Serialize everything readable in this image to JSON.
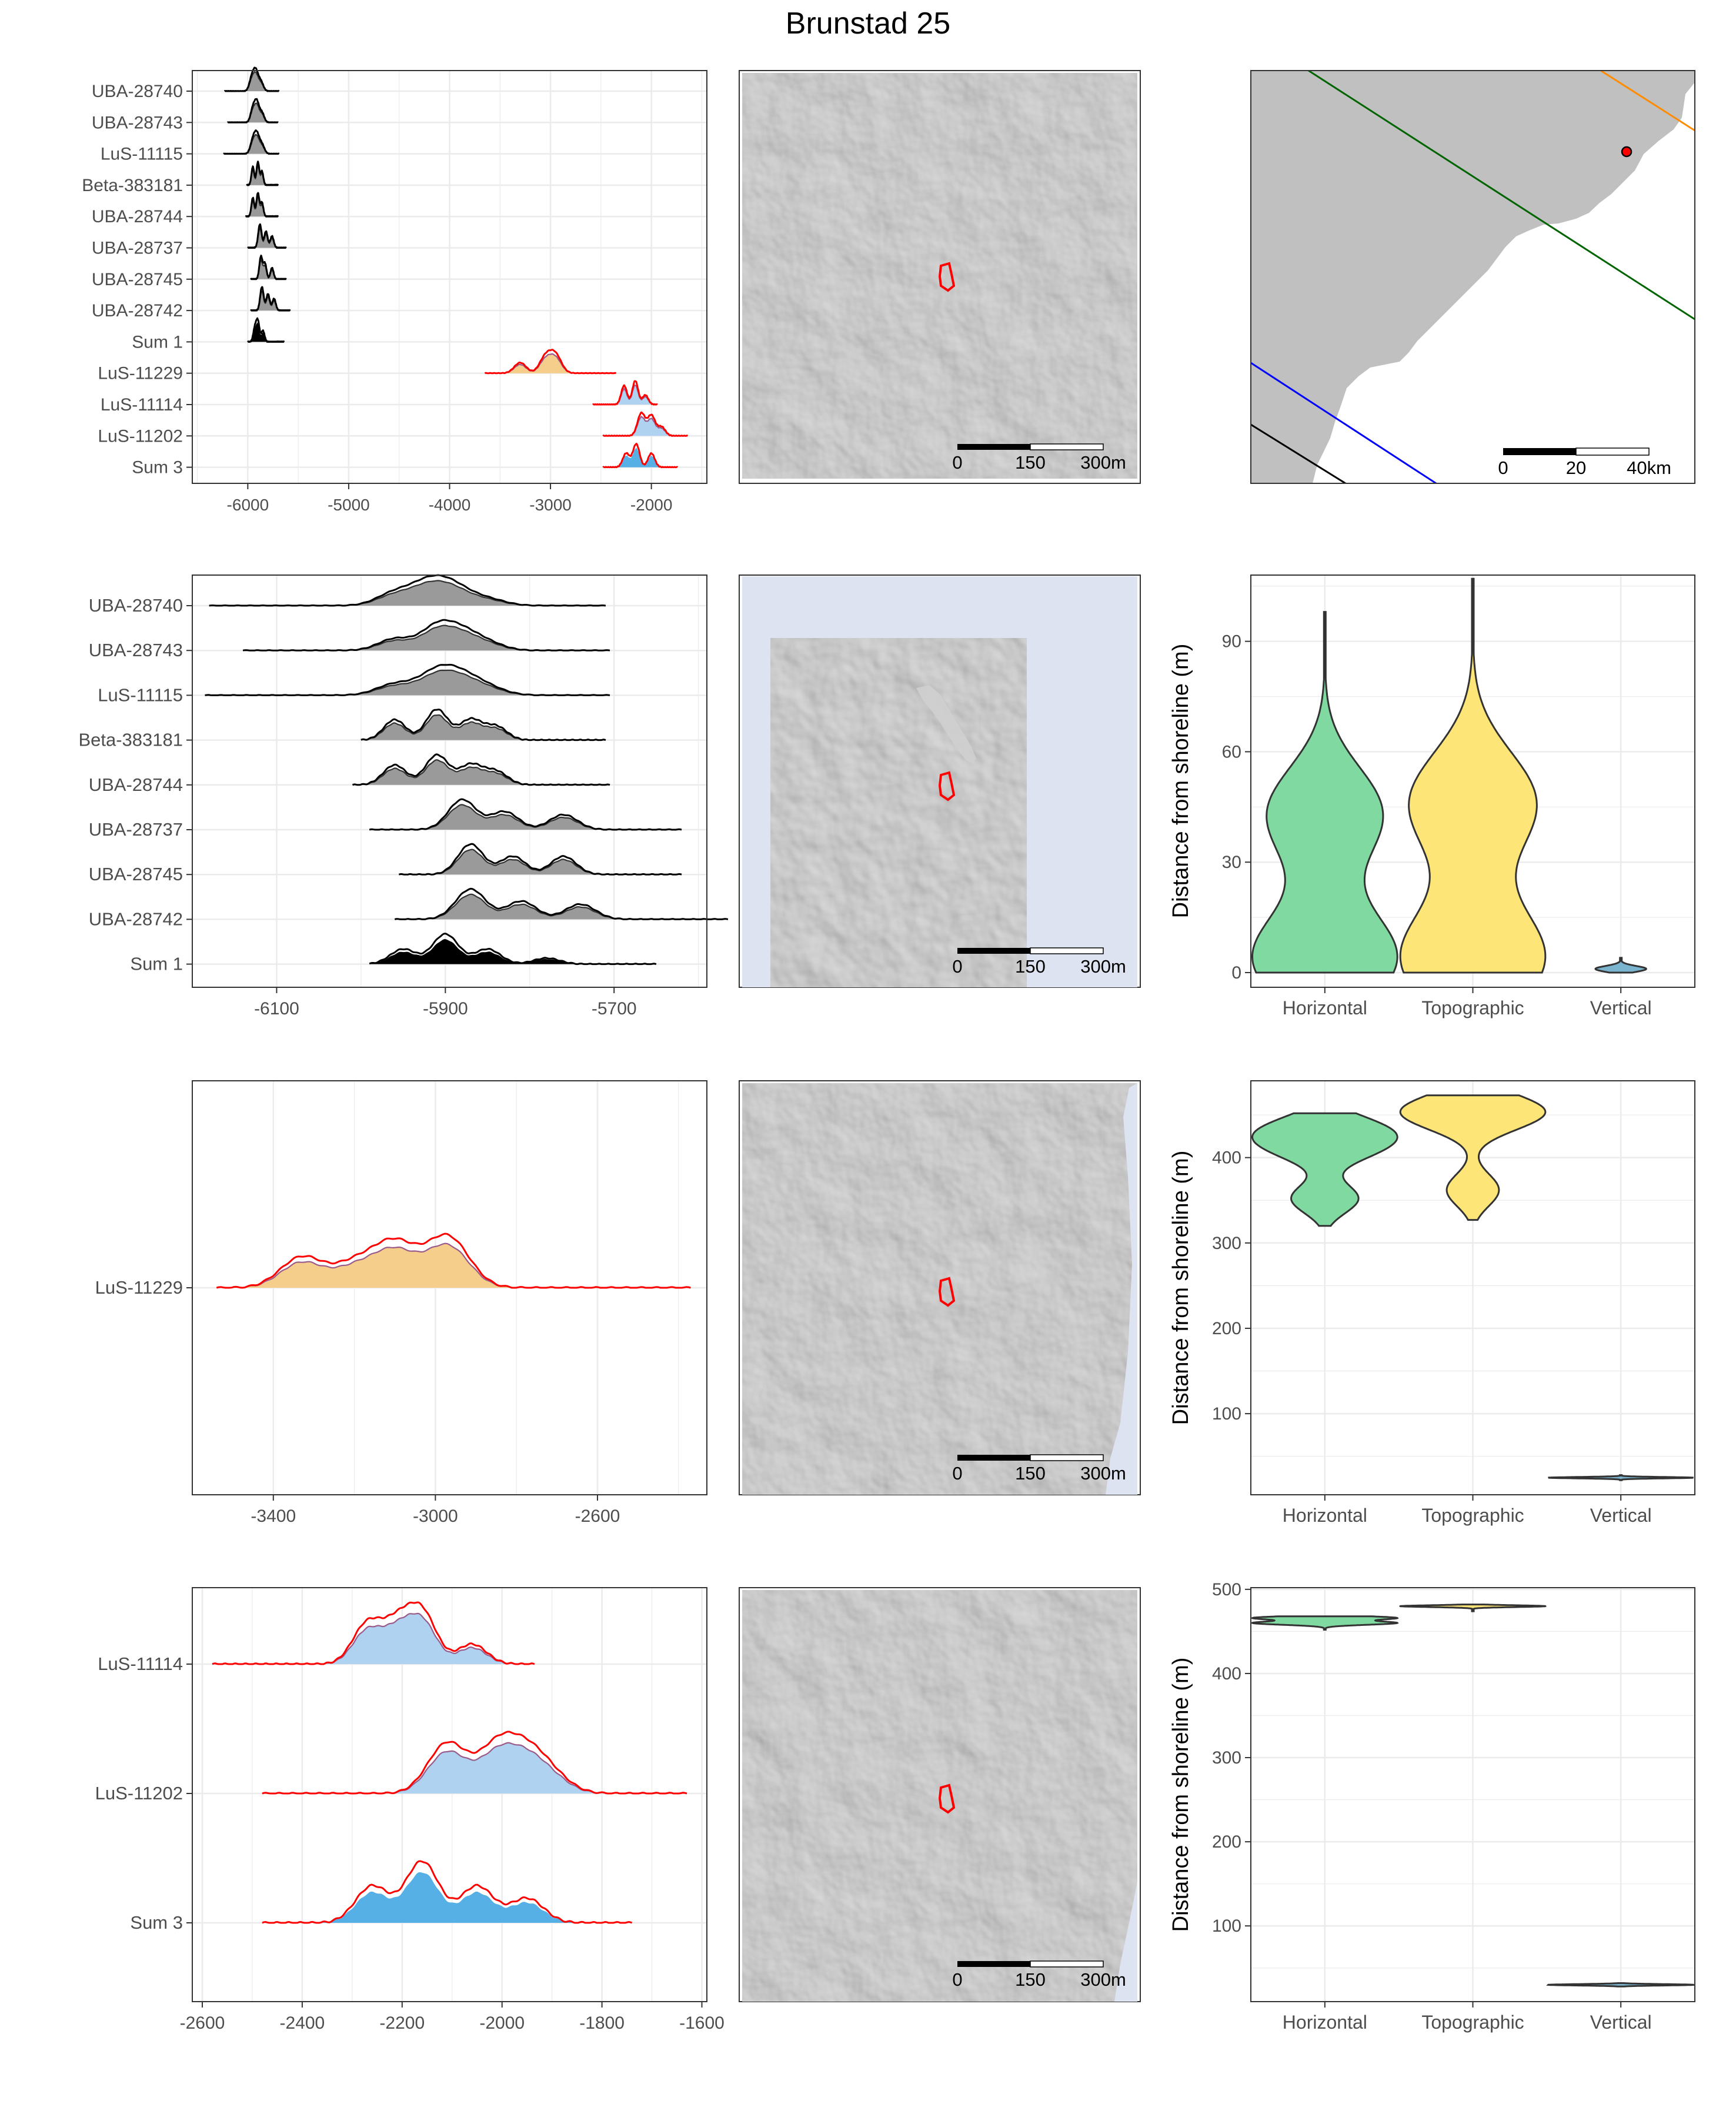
{
  "title": "Brunstad 25",
  "colors": {
    "panel_border": "#333333",
    "grid": "#ebebeb",
    "black": "#000000",
    "red": "#ff0000",
    "gray_fill": "#9a9a9a",
    "orange_fill": "#f5ce8b",
    "light_blue_fill": "#aed2ef",
    "blue_fill": "#56b0e6",
    "horizontal": "#7fd9a0",
    "topographic": "#fde677",
    "vertical": "#7ab4cf",
    "map_gray": "#c0c0c0",
    "sea": "#dde3f1",
    "hillshade": "#8a8a8a",
    "line_green": "#006400",
    "line_blue": "#0000ff",
    "line_orange": "#ff8c00"
  },
  "scalebar_local": [
    "0",
    "150",
    "300m"
  ],
  "scalebar_regional": [
    "0",
    "20",
    "40km"
  ],
  "chart_data": [
    {
      "type": "ridgeline",
      "panel": "row1-dates",
      "xlabel": "",
      "xlim": [
        -6550,
        -1450
      ],
      "xticks": [
        -6000,
        -5000,
        -4000,
        -3000,
        -2000
      ],
      "xtick_labels": [
        "-6000",
        "-5000",
        "-4000",
        "-3000",
        "-2000"
      ],
      "grid": true,
      "series": [
        {
          "name": "UBA-28740",
          "color": "black",
          "range": [
            -6230,
            -5690
          ],
          "peaks": [
            [
              -5960,
              0.7
            ],
            [
              -5920,
              1.0
            ],
            [
              -5870,
              0.5
            ]
          ]
        },
        {
          "name": "UBA-28743",
          "color": "black",
          "range": [
            -6200,
            -5700
          ],
          "peaks": [
            [
              -5950,
              0.7
            ],
            [
              -5910,
              1.0
            ],
            [
              -5860,
              0.5
            ]
          ]
        },
        {
          "name": "LuS-11115",
          "color": "black",
          "range": [
            -6240,
            -5690
          ],
          "peaks": [
            [
              -5950,
              0.7
            ],
            [
              -5910,
              1.0
            ],
            [
              -5860,
              0.5
            ]
          ]
        },
        {
          "name": "Beta-383181",
          "color": "black",
          "range": [
            -6010,
            -5700
          ],
          "peaks": [
            [
              -5950,
              0.8
            ],
            [
              -5900,
              1.0
            ],
            [
              -5860,
              0.6
            ]
          ]
        },
        {
          "name": "UBA-28744",
          "color": "black",
          "range": [
            -6020,
            -5700
          ],
          "peaks": [
            [
              -5950,
              0.8
            ],
            [
              -5900,
              1.0
            ],
            [
              -5860,
              0.6
            ]
          ]
        },
        {
          "name": "UBA-28737",
          "color": "black",
          "range": [
            -6000,
            -5620
          ],
          "peaks": [
            [
              -5880,
              1.0
            ],
            [
              -5820,
              0.7
            ],
            [
              -5760,
              0.5
            ]
          ]
        },
        {
          "name": "UBA-28745",
          "color": "black",
          "range": [
            -5970,
            -5620
          ],
          "peaks": [
            [
              -5870,
              1.0
            ],
            [
              -5830,
              0.7
            ],
            [
              -5760,
              0.5
            ]
          ]
        },
        {
          "name": "UBA-28742",
          "color": "black",
          "range": [
            -5970,
            -5580
          ],
          "peaks": [
            [
              -5860,
              1.0
            ],
            [
              -5800,
              0.7
            ],
            [
              -5740,
              0.5
            ]
          ]
        },
        {
          "name": "Sum 1",
          "color": "black",
          "range": [
            -6000,
            -5640
          ],
          "peaks": [
            [
              -5930,
              0.6
            ],
            [
              -5900,
              0.9
            ],
            [
              -5850,
              0.5
            ]
          ]
        },
        {
          "name": "LuS-11229",
          "color": "red",
          "range": [
            -3650,
            -2350
          ],
          "peaks": [
            [
              -3300,
              0.6
            ],
            [
              -3050,
              0.9
            ],
            [
              -2950,
              1.0
            ]
          ]
        },
        {
          "name": "LuS-11114",
          "color": "red",
          "range": [
            -2580,
            -1940
          ],
          "peaks": [
            [
              -2270,
              0.8
            ],
            [
              -2160,
              1.0
            ],
            [
              -2060,
              0.4
            ]
          ]
        },
        {
          "name": "LuS-11202",
          "color": "red",
          "range": [
            -2480,
            -1640
          ],
          "peaks": [
            [
              -2100,
              1.0
            ],
            [
              -2000,
              0.9
            ],
            [
              -1900,
              0.4
            ]
          ]
        },
        {
          "name": "Sum 3",
          "color": "red",
          "range": [
            -2480,
            -1740
          ],
          "peaks": [
            [
              -2250,
              0.6
            ],
            [
              -2150,
              1.0
            ],
            [
              -2000,
              0.6
            ]
          ]
        }
      ]
    },
    {
      "type": "ridgeline",
      "panel": "row2-dates",
      "xlabel": "",
      "xlim": [
        -6200,
        -5590
      ],
      "xticks": [
        -6100,
        -5900,
        -5700
      ],
      "xtick_labels": [
        "-6100",
        "-5900",
        "-5700"
      ],
      "grid": true,
      "series": [
        {
          "name": "UBA-28740",
          "color": "black",
          "range": [
            -6180,
            -5710
          ],
          "peaks": [
            [
              -5960,
              0.6
            ],
            [
              -5920,
              1.0
            ],
            [
              -5890,
              0.8
            ],
            [
              -5850,
              0.3
            ]
          ]
        },
        {
          "name": "UBA-28743",
          "color": "black",
          "range": [
            -6140,
            -5705
          ],
          "peaks": [
            [
              -5960,
              0.5
            ],
            [
              -5910,
              1.0
            ],
            [
              -5880,
              0.7
            ],
            [
              -5850,
              0.3
            ]
          ]
        },
        {
          "name": "LuS-11115",
          "color": "black",
          "range": [
            -6185,
            -5705
          ],
          "peaks": [
            [
              -5960,
              0.5
            ],
            [
              -5910,
              1.0
            ],
            [
              -5880,
              0.7
            ],
            [
              -5850,
              0.3
            ]
          ]
        },
        {
          "name": "Beta-383181",
          "color": "black",
          "range": [
            -6000,
            -5710
          ],
          "peaks": [
            [
              -5960,
              0.6
            ],
            [
              -5910,
              0.9
            ],
            [
              -5870,
              0.6
            ],
            [
              -5840,
              0.4
            ]
          ]
        },
        {
          "name": "UBA-28744",
          "color": "black",
          "range": [
            -6010,
            -5705
          ],
          "peaks": [
            [
              -5960,
              0.6
            ],
            [
              -5910,
              0.9
            ],
            [
              -5870,
              0.6
            ],
            [
              -5840,
              0.4
            ]
          ]
        },
        {
          "name": "UBA-28737",
          "color": "black",
          "range": [
            -5990,
            -5620
          ],
          "peaks": [
            [
              -5880,
              1.0
            ],
            [
              -5830,
              0.6
            ],
            [
              -5760,
              0.5
            ]
          ]
        },
        {
          "name": "UBA-28745",
          "color": "black",
          "range": [
            -5955,
            -5620
          ],
          "peaks": [
            [
              -5870,
              1.0
            ],
            [
              -5820,
              0.6
            ],
            [
              -5760,
              0.6
            ]
          ]
        },
        {
          "name": "UBA-28742",
          "color": "black",
          "range": [
            -5960,
            -5565
          ],
          "peaks": [
            [
              -5870,
              1.0
            ],
            [
              -5810,
              0.6
            ],
            [
              -5740,
              0.5
            ]
          ]
        },
        {
          "name": "Sum 1",
          "color": "black",
          "range": [
            -5990,
            -5650
          ],
          "peaks": [
            [
              -5950,
              0.5
            ],
            [
              -5900,
              1.0
            ],
            [
              -5850,
              0.5
            ],
            [
              -5780,
              0.2
            ]
          ]
        }
      ]
    },
    {
      "type": "ridgeline",
      "panel": "row3-dates",
      "xlabel": "",
      "xlim": [
        -3600,
        -2330
      ],
      "xticks": [
        -3400,
        -3000,
        -2600
      ],
      "xtick_labels": [
        "-3400",
        "-3000",
        "-2600"
      ],
      "grid": true,
      "series": [
        {
          "name": "LuS-11229",
          "color": "red",
          "range": [
            -3540,
            -2370
          ],
          "peaks": [
            [
              -3330,
              0.6
            ],
            [
              -3200,
              0.45
            ],
            [
              -3100,
              0.85
            ],
            [
              -2970,
              1.0
            ]
          ]
        }
      ]
    },
    {
      "type": "ridgeline",
      "panel": "row4-dates",
      "xlabel": "",
      "xlim": [
        -2620,
        -1590
      ],
      "xticks": [
        -2600,
        -2400,
        -2200,
        -2000,
        -1800,
        -1600
      ],
      "xtick_labels": [
        "-2600",
        "-2400",
        "-2200",
        "-2000",
        "-1800",
        "-1600"
      ],
      "grid": true,
      "series": [
        {
          "name": "LuS-11114",
          "color": "red",
          "range": [
            -2580,
            -1935
          ],
          "peaks": [
            [
              -2270,
              0.8
            ],
            [
              -2210,
              0.75
            ],
            [
              -2160,
              1.0
            ],
            [
              -2060,
              0.4
            ]
          ]
        },
        {
          "name": "LuS-11202",
          "color": "red",
          "range": [
            -2480,
            -1630
          ],
          "peaks": [
            [
              -2110,
              1.0
            ],
            [
              -2010,
              0.9
            ],
            [
              -1950,
              0.7
            ],
            [
              -1900,
              0.3
            ]
          ]
        },
        {
          "name": "Sum 3",
          "color": "red",
          "range": [
            -2480,
            -1740
          ],
          "peaks": [
            [
              -2260,
              0.6
            ],
            [
              -2160,
              1.0
            ],
            [
              -2050,
              0.6
            ],
            [
              -1950,
              0.4
            ]
          ]
        }
      ]
    },
    {
      "type": "violin",
      "panel": "row2-distance",
      "ylabel": "Distance from shoreline (m)",
      "ylim": [
        -4,
        108
      ],
      "yticks": [
        0,
        30,
        60,
        90
      ],
      "ytick_labels": [
        "0",
        "30",
        "60",
        "90"
      ],
      "categories": [
        "Horizontal",
        "Topographic",
        "Vertical"
      ],
      "series": [
        {
          "name": "Horizontal",
          "min": 0,
          "max": 98,
          "modes": [
            [
              4,
              25
            ],
            [
              43,
              20
            ]
          ]
        },
        {
          "name": "Topographic",
          "min": 0,
          "max": 107,
          "modes": [
            [
              4,
              25
            ],
            [
              46,
              22
            ]
          ]
        },
        {
          "name": "Vertical",
          "min": 0,
          "max": 4,
          "modes": [
            [
              1,
              2
            ]
          ]
        }
      ]
    },
    {
      "type": "violin",
      "panel": "row3-distance",
      "ylabel": "Distance from shoreline (m)",
      "ylim": [
        5,
        490
      ],
      "yticks": [
        100,
        200,
        300,
        400
      ],
      "ytick_labels": [
        "100",
        "200",
        "300",
        "400"
      ],
      "categories": [
        "Horizontal",
        "Topographic",
        "Vertical"
      ],
      "series": [
        {
          "name": "Horizontal",
          "min": 320,
          "max": 452,
          "modes": [
            [
              434,
              6
            ],
            [
              410,
              5
            ],
            [
              352,
              4
            ]
          ]
        },
        {
          "name": "Topographic",
          "min": 327,
          "max": 473,
          "modes": [
            [
              460,
              5
            ],
            [
              445,
              4
            ],
            [
              362,
              3
            ]
          ]
        },
        {
          "name": "Vertical",
          "min": 22,
          "max": 28,
          "modes": [
            [
              25,
              2
            ]
          ]
        }
      ]
    },
    {
      "type": "violin",
      "panel": "row4-distance",
      "ylabel": "Distance from shoreline (m)",
      "ylim": [
        10,
        502
      ],
      "yticks": [
        100,
        200,
        300,
        400,
        500
      ],
      "ytick_labels": [
        "100",
        "200",
        "300",
        "400",
        "500"
      ],
      "categories": [
        "Horizontal",
        "Topographic",
        "Vertical"
      ],
      "series": [
        {
          "name": "Horizontal",
          "min": 452,
          "max": 468,
          "modes": [
            [
              466,
              2
            ],
            [
              460,
              2
            ]
          ]
        },
        {
          "name": "Topographic",
          "min": 474,
          "max": 482,
          "modes": [
            [
              480,
              2
            ]
          ]
        },
        {
          "name": "Vertical",
          "min": 28,
          "max": 32,
          "modes": [
            [
              30,
              2
            ]
          ]
        }
      ]
    }
  ]
}
